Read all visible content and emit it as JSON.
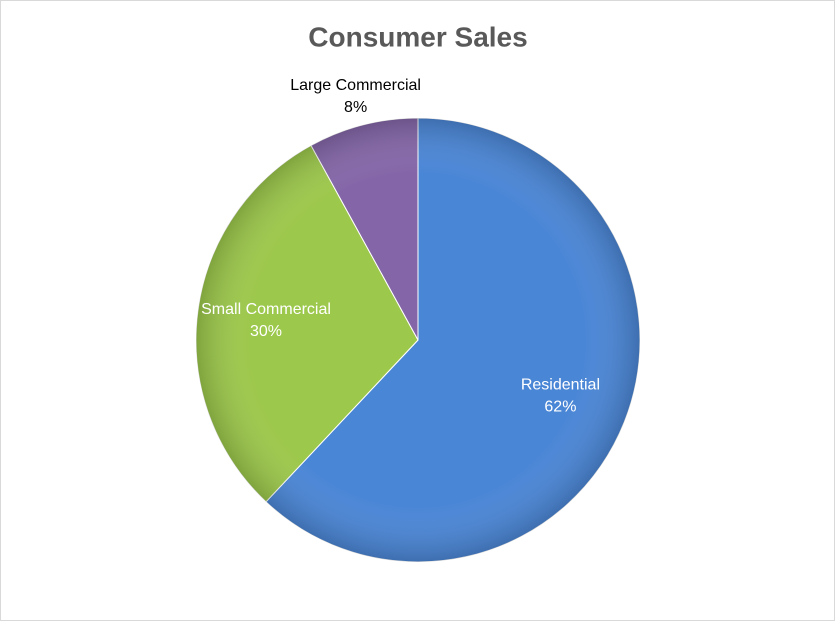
{
  "chart_data": {
    "type": "pie",
    "title": "Consumer Sales",
    "categories": [
      "Residential",
      "Small Commercial",
      "Large Commercial"
    ],
    "values": [
      62,
      30,
      8
    ],
    "value_labels": [
      "62%",
      "30%",
      "8%"
    ],
    "colors": [
      "#4a86d6",
      "#9cc84b",
      "#8466a8"
    ]
  }
}
